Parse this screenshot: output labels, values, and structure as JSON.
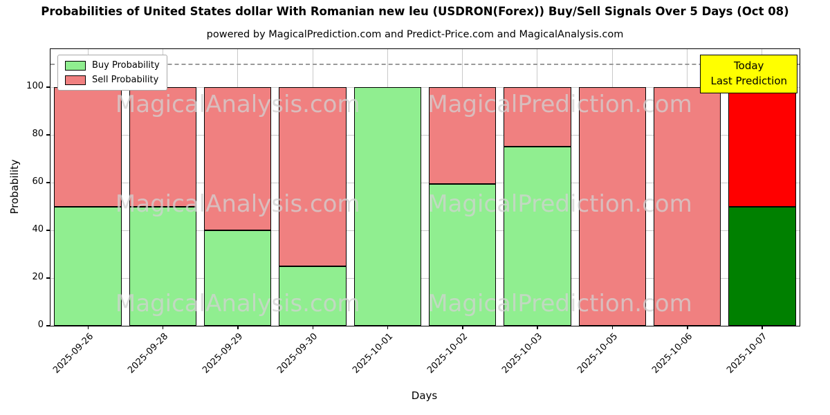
{
  "title": "Probabilities of United States dollar With Romanian new leu (USDRON(Forex)) Buy/Sell Signals Over 5 Days (Oct 08)",
  "subtitle": "powered by MagicalPrediction.com and Predict-Price.com and MagicalAnalysis.com",
  "chart_data": {
    "type": "bar",
    "stacked": true,
    "title": "Probabilities of United States dollar With Romanian new leu (USDRON(Forex)) Buy/Sell Signals Over 5 Days (Oct 08)",
    "xlabel": "Days",
    "ylabel": "Probability",
    "categories": [
      "2025-09-26",
      "2025-09-28",
      "2025-09-29",
      "2025-09-30",
      "2025-10-01",
      "2025-10-02",
      "2025-10-03",
      "2025-10-05",
      "2025-10-06",
      "2025-10-07"
    ],
    "series": [
      {
        "name": "Buy Probability",
        "color": "#90EE90",
        "values": [
          50,
          50,
          40,
          25,
          100,
          59.5,
          75,
          0,
          0,
          50
        ]
      },
      {
        "name": "Sell Probability",
        "color": "#F08080",
        "values": [
          50,
          50,
          60,
          75,
          0,
          40.5,
          25,
          100,
          100,
          50
        ]
      }
    ],
    "today_index": 9,
    "today_colors": {
      "buy": "#008000",
      "sell": "#FF0000"
    },
    "yticks": [
      0,
      20,
      40,
      60,
      80,
      100
    ],
    "ylim": [
      0,
      116
    ],
    "dashed_line_y": 110,
    "grid": true,
    "legend_position": "upper-left",
    "annotation": {
      "lines": [
        "Today",
        "Last Prediction"
      ],
      "bg": "#FFFF00"
    },
    "watermarks": [
      "MagicalAnalysis.com",
      "MagicalPrediction.com"
    ]
  }
}
